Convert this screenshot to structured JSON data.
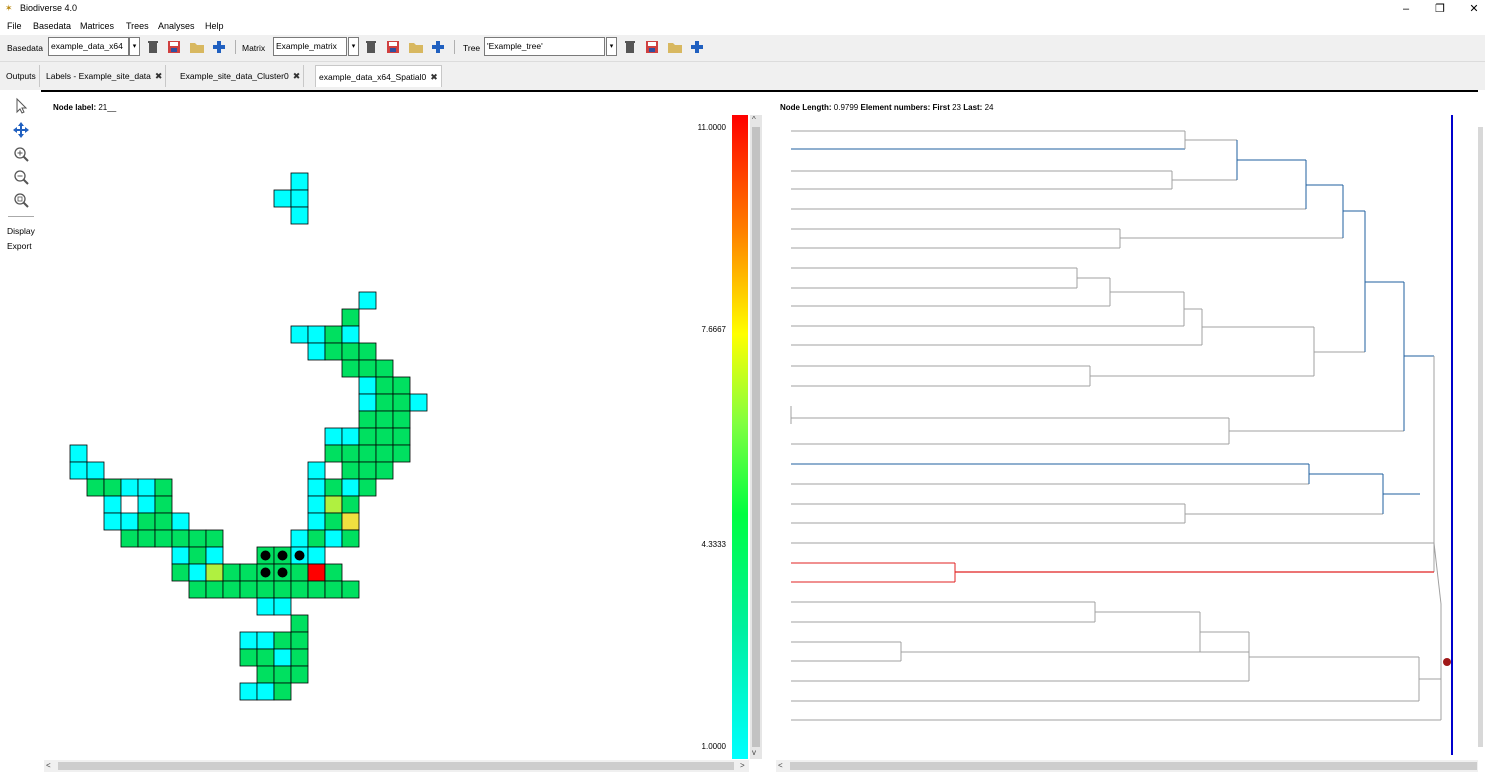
{
  "window": {
    "title": "Biodiverse 4.0",
    "app_icon": "biodiverse-icon",
    "minimize": "–",
    "maximize": "❐",
    "close": "✕"
  },
  "menu": [
    "File",
    "Basedata",
    "Matrices",
    "Trees",
    "Analyses",
    "Help"
  ],
  "toolbar": {
    "basedata_label": "Basedata",
    "basedata_value": "example_data_x64",
    "matrix_label": "Matrix",
    "matrix_value": "Example_matrix",
    "tree_label": "Tree",
    "tree_value": "'Example_tree'"
  },
  "tabs": [
    {
      "label": "Outputs",
      "closable": false
    },
    {
      "label": "Labels - Example_site_data",
      "closable": true
    },
    {
      "label": "Example_site_data_Cluster0",
      "closable": true
    },
    {
      "label": "example_data_x64_Spatial0",
      "closable": true,
      "active": true
    }
  ],
  "tab_close_glyph": "✖",
  "tools": {
    "display_label": "Display",
    "export_label": "Export"
  },
  "map": {
    "node_label_title": "Node label:",
    "node_label_value": "21__",
    "legend": {
      "max": "11.0000",
      "upper": "7.6667",
      "lower": "4.3333",
      "min": "1.0000"
    }
  },
  "tree_panel": {
    "node_length_title": "Node Length:",
    "node_length_value": "0.9799",
    "element_numbers_title": "Element numbers:",
    "first_title": "First",
    "first_value": "23",
    "last_title": "Last:",
    "last_value": "24"
  },
  "colors": {
    "cyan": "#00ffff",
    "green": "#00e060",
    "lightgreen": "#20f050",
    "yellowgreen": "#b0f040",
    "yellow": "#f0e040",
    "red": "#ff0000",
    "branch_blue": "#1f5f9f",
    "branch_red": "#e02020",
    "branch_grey": "#a0a0a0",
    "marker_line": "#0000cc"
  }
}
